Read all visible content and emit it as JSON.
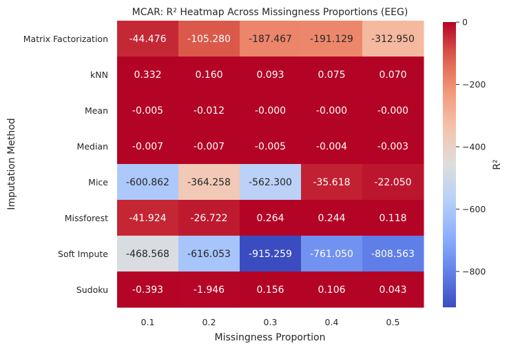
{
  "chart_data": {
    "type": "heatmap",
    "title": "MCAR: R² Heatmap Across Missingness Proportions (EEG)",
    "xlabel": "Missingness Proportion",
    "ylabel": "Imputation Method",
    "x_categories": [
      "0.1",
      "0.2",
      "0.3",
      "0.4",
      "0.5"
    ],
    "y_categories": [
      "Matrix Factorization",
      "kNN",
      "Mean",
      "Median",
      "Mice",
      "Missforest",
      "Soft Impute",
      "Sudoku"
    ],
    "values": [
      [
        -44.476,
        -105.28,
        -187.467,
        -191.129,
        -312.95
      ],
      [
        0.332,
        0.16,
        0.093,
        0.075,
        0.07
      ],
      [
        -0.005,
        -0.012,
        -0.0,
        -0.0,
        -0.0
      ],
      [
        -0.007,
        -0.007,
        -0.005,
        -0.004,
        -0.003
      ],
      [
        -600.862,
        -364.258,
        -562.3,
        -35.618,
        -22.05
      ],
      [
        -41.924,
        -26.722,
        0.264,
        0.244,
        0.118
      ],
      [
        -468.568,
        -616.053,
        -915.259,
        -761.05,
        -808.563
      ],
      [
        -0.393,
        -1.946,
        0.156,
        0.106,
        0.043
      ]
    ],
    "value_labels": [
      [
        "-44.476",
        "-105.280",
        "-187.467",
        "-191.129",
        "-312.950"
      ],
      [
        "0.332",
        "0.160",
        "0.093",
        "0.075",
        "0.070"
      ],
      [
        "-0.005",
        "-0.012",
        "-0.000",
        "-0.000",
        "-0.000"
      ],
      [
        "-0.007",
        "-0.007",
        "-0.005",
        "-0.004",
        "-0.003"
      ],
      [
        "-600.862",
        "-364.258",
        "-562.300",
        "-35.618",
        "-22.050"
      ],
      [
        "-41.924",
        "-26.722",
        "0.264",
        "0.244",
        "0.118"
      ],
      [
        "-468.568",
        "-616.053",
        "-915.259",
        "-761.050",
        "-808.563"
      ],
      [
        "-0.393",
        "-1.946",
        "0.156",
        "0.106",
        "0.043"
      ]
    ],
    "colormap": "coolwarm",
    "vmin": -915.259,
    "vmax": 0.332,
    "colorbar": {
      "label": "R²",
      "ticks": [
        0,
        -200,
        -400,
        -600,
        -800
      ],
      "tick_labels": [
        "0",
        "−200",
        "−400",
        "−600",
        "−800"
      ]
    }
  }
}
